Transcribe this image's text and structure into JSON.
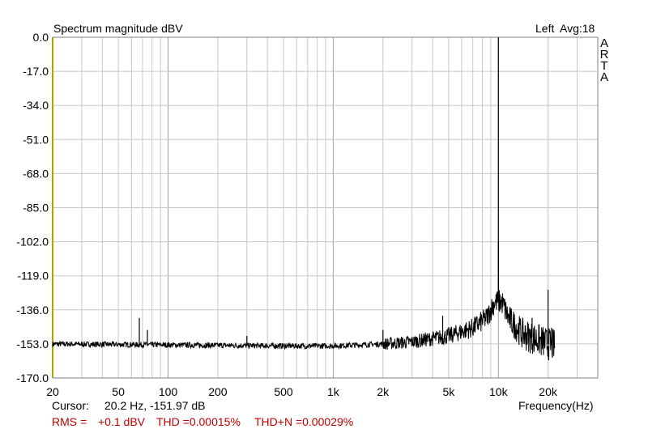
{
  "header": {
    "title": "Spectrum magnitude dBV",
    "channel": "Left",
    "avg": "Avg:18",
    "watermark": [
      "A",
      "R",
      "T",
      "A"
    ]
  },
  "footer": {
    "cursor_label": "Cursor:",
    "cursor_value": "20.2 Hz, -151.97 dB",
    "rms_label": "RMS =",
    "rms_value": "+0.1 dBV",
    "thd": "THD =0.00015%",
    "thdn": "THD+N =0.00029%"
  },
  "colors": {
    "trace": "#000000",
    "grid": "#c8c8c8",
    "axis_left": "#a8a800",
    "readout": "#c00000"
  },
  "chart_data": {
    "type": "line",
    "title": "Spectrum magnitude dBV",
    "xlabel": "Frequency(Hz)",
    "ylabel": "",
    "x_scale": "log",
    "xlim": [
      20,
      40000
    ],
    "ylim": [
      -170,
      0
    ],
    "grid": true,
    "y_ticks": [
      "0.0",
      "-17.0",
      "-34.0",
      "-51.0",
      "-68.0",
      "-85.0",
      "-102.0",
      "-119.0",
      "-136.0",
      "-153.0",
      "-170.0"
    ],
    "y_tick_values": [
      0,
      -17,
      -34,
      -51,
      -68,
      -85,
      -102,
      -119,
      -136,
      -153,
      -170
    ],
    "x_ticks": [
      "20",
      "50",
      "100",
      "200",
      "500",
      "1k",
      "2k",
      "5k",
      "10k",
      "20k"
    ],
    "x_tick_values": [
      20,
      50,
      100,
      200,
      500,
      1000,
      2000,
      5000,
      10000,
      20000
    ],
    "series": [
      {
        "noise_floor": [
          [
            20,
            -153
          ],
          [
            100,
            -153.5
          ],
          [
            500,
            -154
          ],
          [
            1000,
            -154
          ],
          [
            2000,
            -153
          ],
          [
            3000,
            -152
          ],
          [
            5000,
            -149
          ],
          [
            7000,
            -145
          ],
          [
            8500,
            -140
          ],
          [
            9500,
            -132
          ],
          [
            10000,
            0
          ],
          [
            10500,
            -132
          ],
          [
            11500,
            -140
          ],
          [
            14000,
            -148
          ],
          [
            20000,
            -153
          ],
          [
            22000,
            -154
          ]
        ],
        "peaks": [
          [
            10000,
            0
          ],
          [
            10000,
            -102
          ],
          [
            67,
            -140
          ],
          [
            75,
            -146
          ],
          [
            300,
            -149
          ],
          [
            2000,
            -146
          ],
          [
            4600,
            -139
          ],
          [
            16000,
            -140
          ],
          [
            20000,
            -126
          ],
          [
            21000,
            -145
          ]
        ]
      }
    ]
  }
}
